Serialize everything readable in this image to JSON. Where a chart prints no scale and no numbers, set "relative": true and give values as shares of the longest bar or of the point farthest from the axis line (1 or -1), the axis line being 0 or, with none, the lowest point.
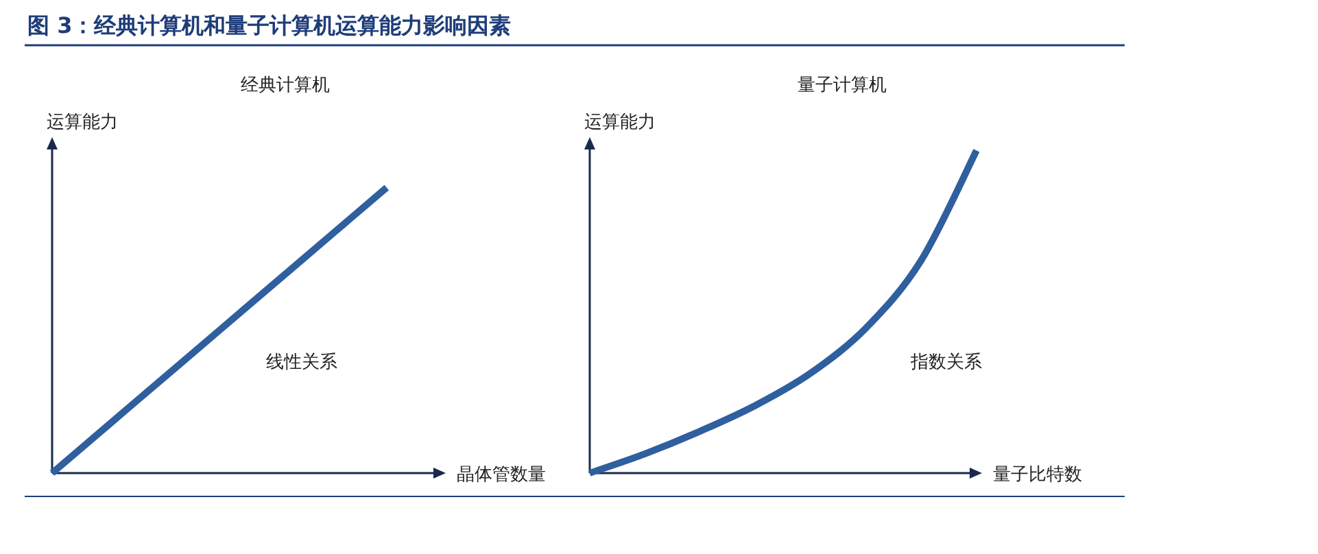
{
  "chart_data": [
    {
      "type": "line",
      "title": "经典计算机",
      "ylabel": "运算能力",
      "xlabel": "晶体管数量",
      "relative": true,
      "categories": [
        null,
        null,
        null,
        null,
        null
      ],
      "series": [
        {
          "color": "#2f5f9e",
          "values": [
            0,
            0.25,
            0.5,
            0.75,
            1
          ]
        }
      ],
      "annotations": [
        "图 3：经典计算机和量子计算机运算能力影响因素",
        "线性关系"
      ]
    },
    {
      "type": "line",
      "title": "量子计算机",
      "ylabel": "运算能力",
      "xlabel": "量子比特数",
      "relative": true,
      "categories": [
        null,
        null,
        null,
        null,
        null,
        null,
        null,
        null
      ],
      "series": [
        {
          "color": "#2f5f9e",
          "values": [
            0,
            0.06,
            0.13,
            0.21,
            0.31,
            0.45,
            0.66,
            1
          ]
        }
      ],
      "annotations": [
        "指数关系"
      ]
    }
  ]
}
